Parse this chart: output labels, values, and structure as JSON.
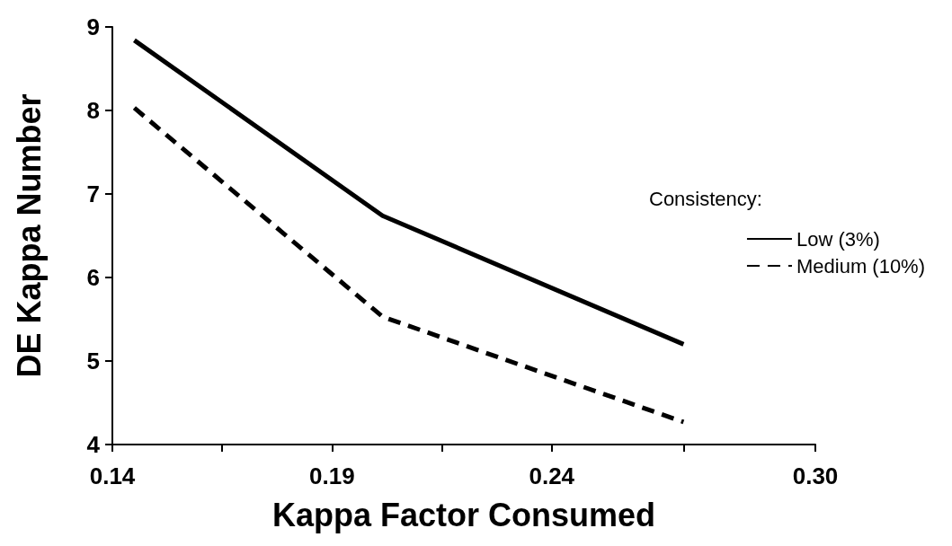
{
  "chart_data": {
    "type": "line",
    "xlabel": "Kappa Factor Consumed",
    "ylabel": "DE Kappa Number",
    "legend_title": "Consistency:",
    "legend": "right",
    "grid": false,
    "marker": "none",
    "xlim": [
      0.14,
      0.3
    ],
    "xticks": [
      {
        "value": 0.14,
        "label": "0.14"
      },
      {
        "value": 0.165,
        "label": null
      },
      {
        "value": 0.19,
        "label": "0.19"
      },
      {
        "value": 0.215,
        "label": null
      },
      {
        "value": 0.24,
        "label": "0.24"
      },
      {
        "value": 0.27,
        "label": null
      },
      {
        "value": 0.3,
        "label": "0.30"
      }
    ],
    "ylim": [
      4,
      9
    ],
    "yticks": [
      4,
      5,
      6,
      7,
      8,
      9
    ],
    "x": [
      0.145,
      0.2015,
      0.27
    ],
    "series": [
      {
        "name": "Low (3%)",
        "color": "#000000",
        "line_style": "solid",
        "values": [
          8.84,
          6.74,
          5.2
        ]
      },
      {
        "name": "Medium (10%)",
        "color": "#000000",
        "line_style": "dashed",
        "values": [
          8.03,
          5.53,
          4.27
        ]
      }
    ]
  }
}
